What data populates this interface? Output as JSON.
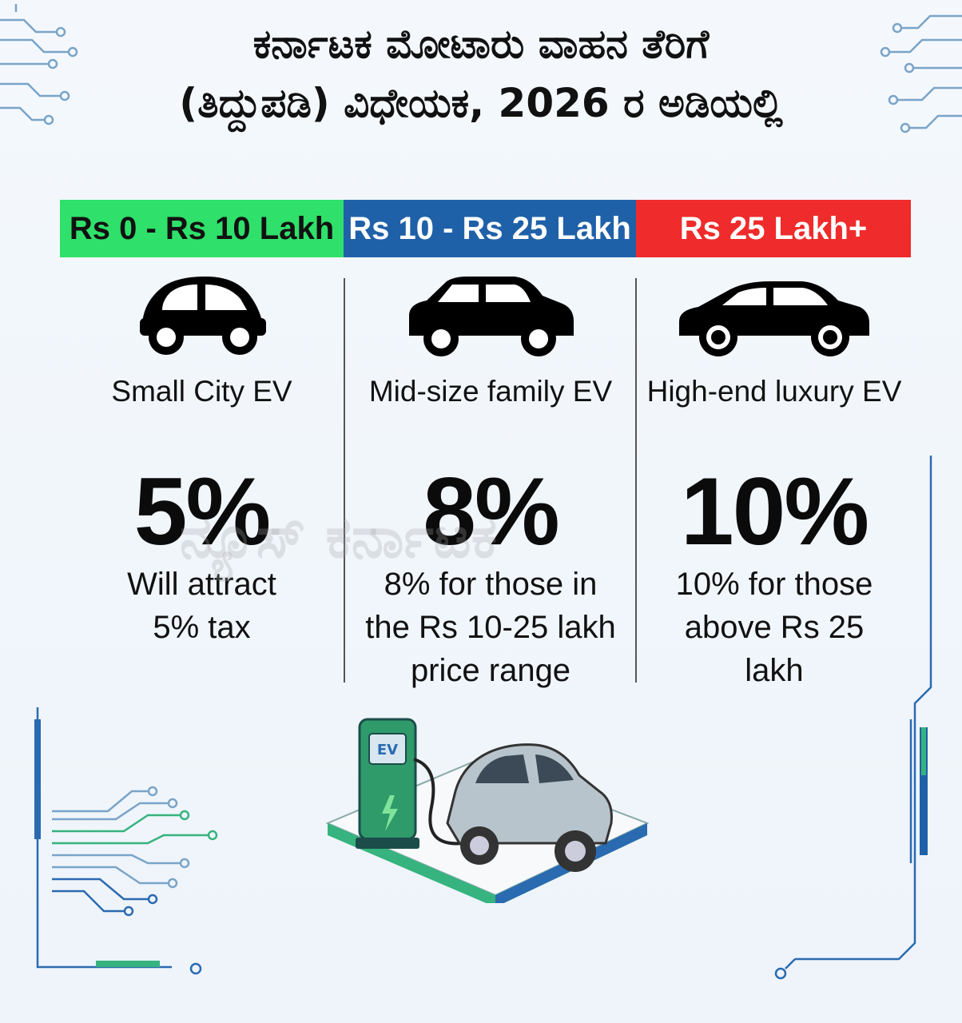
{
  "title": {
    "line1": "ಕರ್ನಾಟಕ ಮೋಟಾರು ವಾಹನ ತೆರಿಗೆ",
    "line2": "(ತಿದ್ದುಪಡಿ) ವಿಧೇಯಕ, 2026 ರ ಅಡಿಯಲ್ಲಿ"
  },
  "watermark": "ನ್ಯೂಸ್ ಕರ್ನಾಟಕ",
  "tiers": [
    {
      "range": "Rs 0 - Rs 10 Lakh",
      "vehicle": "Small City EV",
      "rate": "5%",
      "description_lines": [
        "Will attract",
        "5% tax"
      ],
      "band_color": "#2fe06a",
      "icon": "small-city-car-icon"
    },
    {
      "range": "Rs 10 - Rs 25 Lakh",
      "vehicle": "Mid-size family EV",
      "rate": "8%",
      "description_lines": [
        "8% for those in",
        "the Rs 10-25 lakh",
        "price range"
      ],
      "band_color": "#1f61a8",
      "icon": "hatchback-car-icon"
    },
    {
      "range": "Rs 25 Lakh+",
      "vehicle": "High-end luxury EV",
      "rate": "10%",
      "description_lines": [
        "10% for those",
        "above Rs 25",
        "lakh"
      ],
      "band_color": "#ef2b2b",
      "icon": "luxury-sedan-icon"
    }
  ],
  "charger": {
    "label": "EV",
    "icon": "ev-charging-station-icon"
  }
}
